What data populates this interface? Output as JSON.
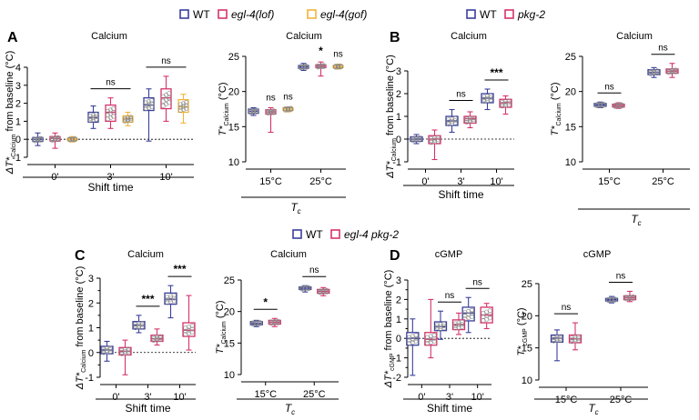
{
  "legend_top": {
    "items": [
      {
        "label": "WT",
        "color": "#3a3f9a",
        "italic": false
      },
      {
        "label": "egl-4(lof)",
        "color": "#d6336c",
        "italic": true
      },
      {
        "label": "egl-4(gof)",
        "color": "#f0b43c",
        "italic": true
      }
    ]
  },
  "legend_top_right": {
    "items": [
      {
        "label": "WT",
        "color": "#3a3f9a",
        "italic": false
      },
      {
        "label": "pkg-2",
        "color": "#d6336c",
        "italic": true
      }
    ]
  },
  "legend_mid": {
    "items": [
      {
        "label": "WT",
        "color": "#3a3f9a",
        "italic": false
      },
      {
        "label": "egl-4 pkg-2",
        "color": "#d6336c",
        "italic": true
      }
    ]
  },
  "panel_letters": [
    "A",
    "B",
    "C",
    "D"
  ],
  "chart_data": [
    {
      "id": "A1",
      "type": "box",
      "panel": "A",
      "title": "Calcium",
      "ylabel_main": "ΔT*",
      "ylabel_sub": "Calcium",
      "ylabel_rest": " from baseline (°C)",
      "ylim": [
        -1,
        4
      ],
      "yticks": [
        -1,
        0,
        1,
        2,
        3,
        4
      ],
      "categories": [
        "0'",
        "3'",
        "10'"
      ],
      "xlabel": "Shift time",
      "xlabel_italic": false,
      "xlabel_sub": "",
      "series": [
        {
          "name": "WT",
          "color": "#3a3f9a",
          "boxes": [
            {
              "min": -0.35,
              "q1": -0.12,
              "median": 0.0,
              "q3": 0.1,
              "max": 0.35
            },
            {
              "min": 0.6,
              "q1": 0.95,
              "median": 1.2,
              "q3": 1.5,
              "max": 1.85
            },
            {
              "min": -0.1,
              "q1": 1.6,
              "median": 1.9,
              "q3": 2.3,
              "max": 2.8
            }
          ]
        },
        {
          "name": "egl-4(lof)",
          "color": "#d6336c",
          "boxes": [
            {
              "min": -0.5,
              "q1": -0.1,
              "median": 0.05,
              "q3": 0.15,
              "max": 0.35
            },
            {
              "min": 0.6,
              "q1": 1.0,
              "median": 1.5,
              "q3": 1.9,
              "max": 2.3
            },
            {
              "min": 1.0,
              "q1": 1.7,
              "median": 2.3,
              "q3": 2.8,
              "max": 3.5
            }
          ]
        },
        {
          "name": "egl-4(gof)",
          "color": "#f0b43c",
          "boxes": [
            {
              "min": -0.15,
              "q1": -0.05,
              "median": 0.0,
              "q3": 0.05,
              "max": 0.15
            },
            {
              "min": 0.75,
              "q1": 0.95,
              "median": 1.15,
              "q3": 1.3,
              "max": 1.5
            },
            {
              "min": 0.9,
              "q1": 1.5,
              "median": 1.8,
              "q3": 2.2,
              "max": 2.5
            }
          ]
        }
      ],
      "dotted_zero": true,
      "sig": [
        {
          "text": "ns",
          "cat": 1
        },
        {
          "text": "ns",
          "cat": 2
        }
      ]
    },
    {
      "id": "A2",
      "type": "box",
      "panel": "A",
      "title": "Calcium",
      "ylabel_main": "T*",
      "ylabel_sub": "Calcium",
      "ylabel_rest": " (°C)",
      "ylim": [
        10,
        25
      ],
      "yticks": [
        10,
        15,
        20,
        25
      ],
      "categories": [
        "15°C",
        "25°C"
      ],
      "xlabel": "T",
      "xlabel_italic": true,
      "xlabel_sub": "c",
      "series": [
        {
          "name": "WT",
          "color": "#3a3f9a",
          "boxes": [
            {
              "min": 16.6,
              "q1": 16.9,
              "median": 17.2,
              "q3": 17.5,
              "max": 17.7
            },
            {
              "min": 23.0,
              "q1": 23.3,
              "median": 23.5,
              "q3": 23.7,
              "max": 24.0
            }
          ]
        },
        {
          "name": "egl-4(lof)",
          "color": "#d6336c",
          "boxes": [
            {
              "min": 14.2,
              "q1": 16.8,
              "median": 17.1,
              "q3": 17.4,
              "max": 17.7
            },
            {
              "min": 22.2,
              "q1": 23.4,
              "median": 23.6,
              "q3": 23.8,
              "max": 24.2
            }
          ]
        },
        {
          "name": "egl-4(gof)",
          "color": "#f0b43c",
          "boxes": [
            {
              "min": 17.1,
              "q1": 17.3,
              "median": 17.5,
              "q3": 17.7,
              "max": 17.8
            },
            {
              "min": 23.2,
              "q1": 23.4,
              "median": 23.5,
              "q3": 23.7,
              "max": 23.9
            }
          ]
        }
      ],
      "dotted_zero": false,
      "sig_single": [
        {
          "text": "ns",
          "cat": 0,
          "s": 1
        },
        {
          "text": "ns",
          "cat": 0,
          "s": 2
        },
        {
          "text": "*",
          "cat": 1,
          "s": 1
        },
        {
          "text": "ns",
          "cat": 1,
          "s": 2
        }
      ]
    },
    {
      "id": "B1",
      "type": "box",
      "panel": "B",
      "title": "Calcium",
      "ylabel_main": "ΔT*",
      "ylabel_sub": "Calcium",
      "ylabel_rest": " from baseline (°C)",
      "ylim": [
        -1,
        3
      ],
      "yticks": [
        -1,
        0,
        1,
        2,
        3
      ],
      "categories": [
        "0'",
        "3'",
        "10'"
      ],
      "xlabel": "Shift time",
      "xlabel_italic": false,
      "xlabel_sub": "",
      "series": [
        {
          "name": "WT",
          "color": "#3a3f9a",
          "boxes": [
            {
              "min": -0.2,
              "q1": -0.1,
              "median": 0.0,
              "q3": 0.1,
              "max": 0.2
            },
            {
              "min": 0.3,
              "q1": 0.6,
              "median": 0.8,
              "q3": 1.0,
              "max": 1.3
            },
            {
              "min": 1.3,
              "q1": 1.6,
              "median": 1.8,
              "q3": 2.0,
              "max": 2.2
            }
          ]
        },
        {
          "name": "pkg-2",
          "color": "#d6336c",
          "boxes": [
            {
              "min": -0.9,
              "q1": -0.2,
              "median": 0.0,
              "q3": 0.15,
              "max": 0.4
            },
            {
              "min": 0.5,
              "q1": 0.7,
              "median": 0.9,
              "q3": 1.0,
              "max": 1.2
            },
            {
              "min": 1.1,
              "q1": 1.4,
              "median": 1.6,
              "q3": 1.75,
              "max": 1.9
            }
          ]
        }
      ],
      "dotted_zero": true,
      "sig": [
        {
          "text": "ns",
          "cat": 1
        },
        {
          "text": "***",
          "cat": 2
        }
      ]
    },
    {
      "id": "B2",
      "type": "box",
      "panel": "B",
      "title": "Calcium",
      "ylabel_main": "T*",
      "ylabel_sub": "Calcium",
      "ylabel_rest": " (°C)",
      "ylim": [
        10,
        25
      ],
      "yticks": [
        10,
        15,
        20,
        25
      ],
      "categories": [
        "15°C",
        "25°C"
      ],
      "xlabel": "T",
      "xlabel_italic": true,
      "xlabel_sub": "c",
      "series": [
        {
          "name": "WT",
          "color": "#3a3f9a",
          "boxes": [
            {
              "min": 17.7,
              "q1": 17.9,
              "median": 18.1,
              "q3": 18.3,
              "max": 18.5
            },
            {
              "min": 22.0,
              "q1": 22.4,
              "median": 22.7,
              "q3": 23.1,
              "max": 23.4
            }
          ]
        },
        {
          "name": "pkg-2",
          "color": "#d6336c",
          "boxes": [
            {
              "min": 17.6,
              "q1": 17.8,
              "median": 18.0,
              "q3": 18.2,
              "max": 18.4
            },
            {
              "min": 22.0,
              "q1": 22.6,
              "median": 22.9,
              "q3": 23.2,
              "max": 24.0
            }
          ]
        }
      ],
      "dotted_zero": false,
      "sig": [
        {
          "text": "ns",
          "cat": 0
        },
        {
          "text": "ns",
          "cat": 1
        }
      ]
    },
    {
      "id": "C1",
      "type": "box",
      "panel": "C",
      "title": "Calcium",
      "ylabel_main": "ΔT*",
      "ylabel_sub": "Calcium",
      "ylabel_rest": " from baseline (°C)",
      "ylim": [
        -1,
        3
      ],
      "yticks": [
        -1,
        -0.5,
        0,
        0.5,
        1,
        1.5,
        2,
        2.5,
        3
      ],
      "categories": [
        "0'",
        "3'",
        "10'"
      ],
      "xlabel": "Shift time",
      "xlabel_italic": false,
      "xlabel_sub": "",
      "series": [
        {
          "name": "WT",
          "color": "#3a3f9a",
          "boxes": [
            {
              "min": -0.35,
              "q1": -0.05,
              "median": 0.1,
              "q3": 0.25,
              "max": 0.45
            },
            {
              "min": 0.8,
              "q1": 0.95,
              "median": 1.1,
              "q3": 1.25,
              "max": 1.5
            },
            {
              "min": 1.4,
              "q1": 1.95,
              "median": 2.15,
              "q3": 2.4,
              "max": 2.7
            }
          ]
        },
        {
          "name": "egl-4 pkg-2",
          "color": "#d6336c",
          "boxes": [
            {
              "min": -0.9,
              "q1": -0.1,
              "median": 0.05,
              "q3": 0.2,
              "max": 0.5
            },
            {
              "min": 0.3,
              "q1": 0.45,
              "median": 0.55,
              "q3": 0.7,
              "max": 0.95
            },
            {
              "min": 0.1,
              "q1": 0.65,
              "median": 0.9,
              "q3": 1.2,
              "max": 2.3
            }
          ]
        }
      ],
      "dotted_zero": true,
      "sig": [
        {
          "text": "***",
          "cat": 1
        },
        {
          "text": "***",
          "cat": 2
        }
      ]
    },
    {
      "id": "C2",
      "type": "box",
      "panel": "C",
      "title": "Calcium",
      "ylabel_main": "T*",
      "ylabel_sub": "Calcium",
      "ylabel_rest": " (°C)",
      "ylim": [
        10,
        25
      ],
      "yticks": [
        10,
        15,
        20,
        25
      ],
      "categories": [
        "15°C",
        "25°C"
      ],
      "xlabel": "T",
      "xlabel_italic": true,
      "xlabel_sub": "c",
      "series": [
        {
          "name": "WT",
          "color": "#3a3f9a",
          "boxes": [
            {
              "min": 17.6,
              "q1": 17.9,
              "median": 18.1,
              "q3": 18.4,
              "max": 18.6
            },
            {
              "min": 23.1,
              "q1": 23.5,
              "median": 23.7,
              "q3": 23.9,
              "max": 24.1
            }
          ]
        },
        {
          "name": "egl-4 pkg-2",
          "color": "#d6336c",
          "boxes": [
            {
              "min": 17.6,
              "q1": 18.0,
              "median": 18.3,
              "q3": 18.6,
              "max": 18.9
            },
            {
              "min": 22.5,
              "q1": 22.9,
              "median": 23.2,
              "q3": 23.5,
              "max": 23.8
            }
          ]
        }
      ],
      "dotted_zero": false,
      "sig": [
        {
          "text": "*",
          "cat": 0
        },
        {
          "text": "ns",
          "cat": 1
        }
      ]
    },
    {
      "id": "D1",
      "type": "box",
      "panel": "D",
      "title": "cGMP",
      "ylabel_main": "ΔT*",
      "ylabel_sub": "cGMP",
      "ylabel_rest": " from baseline (°C)",
      "ylim": [
        -2,
        3
      ],
      "yticks": [
        -2,
        -1.5,
        -1,
        -0.5,
        0,
        0.5,
        1,
        1.5,
        2,
        2.5,
        3
      ],
      "categories": [
        "0'",
        "3'",
        "10'"
      ],
      "xlabel": "Shift time",
      "xlabel_italic": false,
      "xlabel_sub": "",
      "series": [
        {
          "name": "WT",
          "color": "#3a3f9a",
          "boxes": [
            {
              "min": -1.9,
              "q1": -0.35,
              "median": 0.0,
              "q3": 0.3,
              "max": 1.0
            },
            {
              "min": -0.05,
              "q1": 0.4,
              "median": 0.6,
              "q3": 0.85,
              "max": 1.4
            },
            {
              "min": 0.3,
              "q1": 0.9,
              "median": 1.3,
              "q3": 1.6,
              "max": 2.1
            }
          ]
        },
        {
          "name": "egl-4 pkg-2",
          "color": "#d6336c",
          "boxes": [
            {
              "min": -1.0,
              "q1": -0.35,
              "median": -0.05,
              "q3": 0.3,
              "max": 2.0
            },
            {
              "min": 0.2,
              "q1": 0.45,
              "median": 0.7,
              "q3": 0.95,
              "max": 1.3
            },
            {
              "min": 0.5,
              "q1": 0.8,
              "median": 1.2,
              "q3": 1.6,
              "max": 1.8
            }
          ]
        }
      ],
      "dotted_zero": true,
      "sig": [
        {
          "text": "ns",
          "cat": 1
        },
        {
          "text": "ns",
          "cat": 2
        }
      ]
    },
    {
      "id": "D2",
      "type": "box",
      "panel": "D",
      "title": "cGMP",
      "ylabel_main": "T*",
      "ylabel_sub": "cGMP",
      "ylabel_rest": " (°C)",
      "ylim": [
        10,
        25
      ],
      "yticks": [
        10,
        15,
        20,
        25
      ],
      "categories": [
        "15°C",
        "25°C"
      ],
      "xlabel": "T",
      "xlabel_italic": true,
      "xlabel_sub": "c",
      "series": [
        {
          "name": "WT",
          "color": "#3a3f9a",
          "boxes": [
            {
              "min": 13.0,
              "q1": 15.9,
              "median": 16.5,
              "q3": 17.0,
              "max": 17.8
            }
          ]
        },
        {
          "name": "egl-4 pkg-2",
          "color": "#d6336c",
          "boxes": [
            {
              "min": 14.7,
              "q1": 15.8,
              "median": 16.4,
              "q3": 17.0,
              "max": 18.9
            }
          ]
        }
      ],
      "extra_25": [
        {
          "color": "#3a3f9a",
          "min": 22.0,
          "q1": 22.3,
          "median": 22.5,
          "q3": 22.7,
          "max": 23.0
        },
        {
          "color": "#d6336c",
          "min": 22.2,
          "q1": 22.5,
          "median": 22.8,
          "q3": 23.1,
          "max": 23.8
        }
      ],
      "dotted_zero": false,
      "sig": [
        {
          "text": "ns",
          "cat": 0
        },
        {
          "text": "ns",
          "cat": 1
        }
      ]
    }
  ]
}
